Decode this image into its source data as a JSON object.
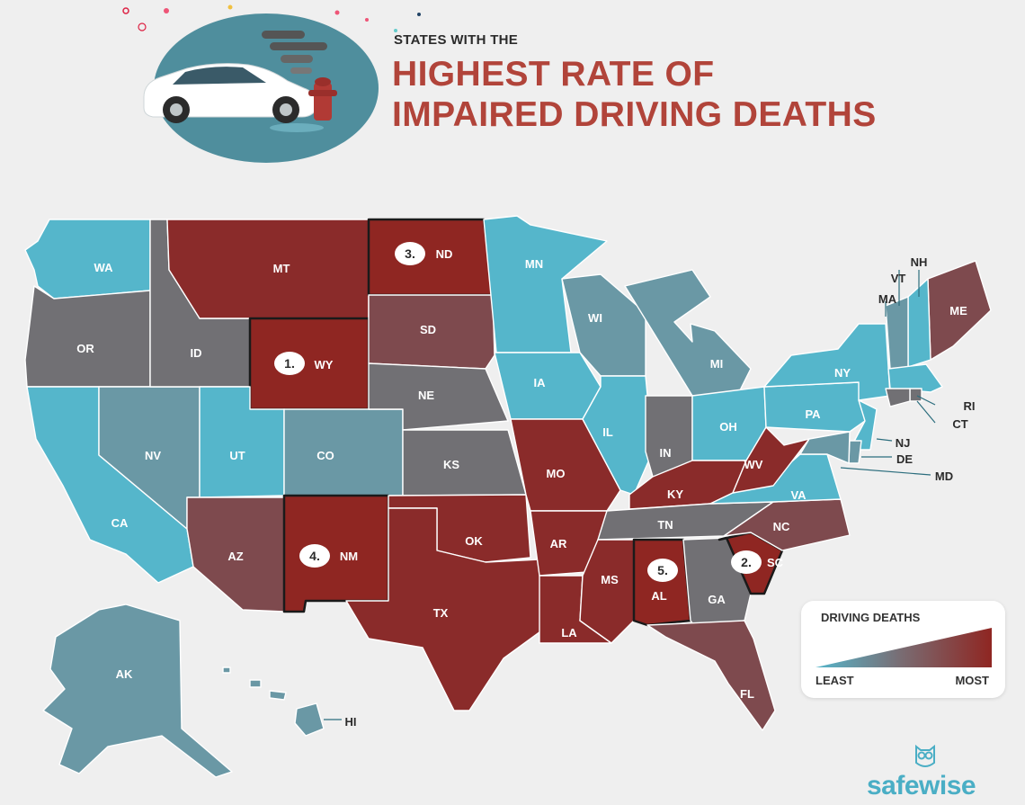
{
  "header": {
    "subtitle": "STATES WITH THE",
    "title_line1": "HIGHEST RATE OF",
    "title_line2": "IMPAIRED DRIVING DEATHS"
  },
  "colors": {
    "least": "#55b6cb",
    "low": "#6a98a5",
    "mid": "#717074",
    "high": "#7e4a4e",
    "most": "#8a2b2a",
    "top": "#8f2622",
    "title": "#b1443a",
    "brand": "#4aaec5"
  },
  "states": {
    "WA": {
      "label": "WA",
      "level": "least"
    },
    "OR": {
      "label": "OR",
      "level": "mid"
    },
    "CA": {
      "label": "CA",
      "level": "least"
    },
    "NV": {
      "label": "NV",
      "level": "low"
    },
    "ID": {
      "label": "ID",
      "level": "mid"
    },
    "MT": {
      "label": "MT",
      "level": "most"
    },
    "WY": {
      "label": "WY",
      "level": "top",
      "rank": "1."
    },
    "UT": {
      "label": "UT",
      "level": "least"
    },
    "AZ": {
      "label": "AZ",
      "level": "high"
    },
    "CO": {
      "label": "CO",
      "level": "low"
    },
    "NM": {
      "label": "NM",
      "level": "top",
      "rank": "4."
    },
    "ND": {
      "label": "ND",
      "level": "top",
      "rank": "3."
    },
    "SD": {
      "label": "SD",
      "level": "high"
    },
    "NE": {
      "label": "NE",
      "level": "mid"
    },
    "KS": {
      "label": "KS",
      "level": "mid"
    },
    "OK": {
      "label": "OK",
      "level": "most"
    },
    "TX": {
      "label": "TX",
      "level": "most"
    },
    "MN": {
      "label": "MN",
      "level": "least"
    },
    "IA": {
      "label": "IA",
      "level": "least"
    },
    "MO": {
      "label": "MO",
      "level": "most"
    },
    "AR": {
      "label": "AR",
      "level": "most"
    },
    "LA": {
      "label": "LA",
      "level": "most"
    },
    "WI": {
      "label": "WI",
      "level": "low"
    },
    "IL": {
      "label": "IL",
      "level": "least"
    },
    "MI": {
      "label": "MI",
      "level": "low"
    },
    "IN": {
      "label": "IN",
      "level": "mid"
    },
    "OH": {
      "label": "OH",
      "level": "least"
    },
    "KY": {
      "label": "KY",
      "level": "most"
    },
    "TN": {
      "label": "TN",
      "level": "mid"
    },
    "MS": {
      "label": "MS",
      "level": "most"
    },
    "AL": {
      "label": "AL",
      "level": "top",
      "rank": "5."
    },
    "GA": {
      "label": "GA",
      "level": "mid"
    },
    "FL": {
      "label": "FL",
      "level": "high"
    },
    "SC": {
      "label": "SC",
      "level": "top",
      "rank": "2."
    },
    "NC": {
      "label": "NC",
      "level": "high"
    },
    "VA": {
      "label": "VA",
      "level": "least"
    },
    "WV": {
      "label": "WV",
      "level": "most"
    },
    "PA": {
      "label": "PA",
      "level": "least"
    },
    "NY": {
      "label": "NY",
      "level": "least"
    },
    "ME": {
      "label": "ME",
      "level": "high"
    },
    "NH": {
      "label": "NH",
      "level": "least"
    },
    "VT": {
      "label": "VT",
      "level": "low"
    },
    "MA": {
      "label": "MA",
      "level": "least"
    },
    "RI": {
      "label": "RI",
      "level": "mid"
    },
    "CT": {
      "label": "CT",
      "level": "mid"
    },
    "NJ": {
      "label": "NJ",
      "level": "least"
    },
    "DE": {
      "label": "DE",
      "level": "low"
    },
    "MD": {
      "label": "MD",
      "level": "low"
    },
    "AK": {
      "label": "AK",
      "level": "low"
    },
    "HI": {
      "label": "HI",
      "level": "low"
    }
  },
  "legend": {
    "title": "DRIVING DEATHS",
    "least_label": "LEAST",
    "most_label": "MOST"
  },
  "brand": {
    "name": "safewise"
  }
}
